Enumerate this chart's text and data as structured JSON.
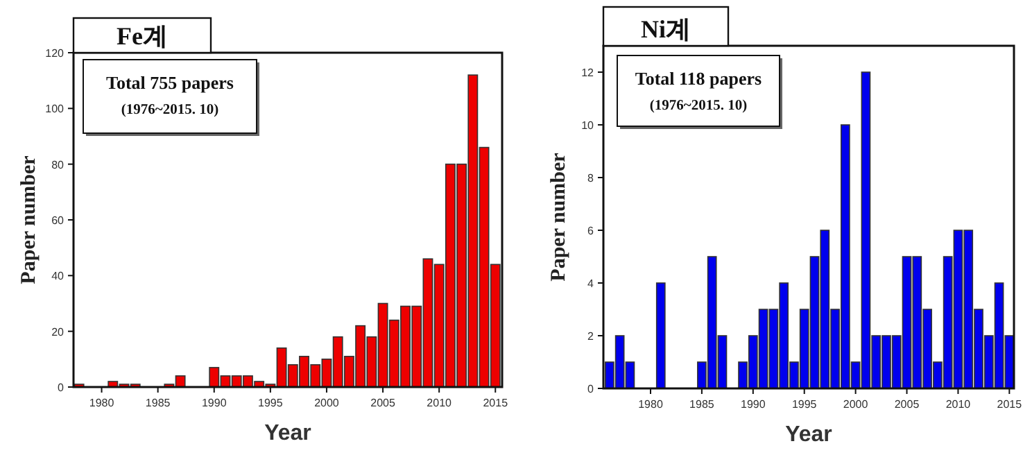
{
  "chart_data": [
    {
      "type": "bar",
      "title": "Fe계",
      "xlabel": "Year",
      "ylabel": "Paper number",
      "annotations": [
        "Total 755 papers",
        "(1976~2015. 10)"
      ],
      "x": [
        1978,
        1981,
        1982,
        1983,
        1986,
        1987,
        1990,
        1991,
        1992,
        1993,
        1994,
        1995,
        1996,
        1997,
        1998,
        1999,
        2000,
        2001,
        2002,
        2003,
        2004,
        2005,
        2006,
        2007,
        2008,
        2009,
        2010,
        2011,
        2012,
        2013,
        2014,
        2015
      ],
      "values": [
        1,
        2,
        1,
        1,
        1,
        4,
        7,
        4,
        4,
        4,
        2,
        1,
        14,
        8,
        11,
        8,
        10,
        18,
        11,
        22,
        18,
        30,
        24,
        29,
        29,
        46,
        44,
        80,
        80,
        112,
        86,
        44
      ],
      "color": "#ee0000",
      "xlim": [
        1977.5,
        2015.6
      ],
      "xticks": [
        1980,
        1985,
        1990,
        1995,
        2000,
        2005,
        2010,
        2015
      ],
      "ylim": [
        0,
        120
      ],
      "yticks": [
        0,
        20,
        40,
        60,
        80,
        100,
        120
      ]
    },
    {
      "type": "bar",
      "title": "Ni계",
      "xlabel": "Year",
      "ylabel": "Paper number",
      "annotations": [
        "Total 118 papers",
        "(1976~2015. 10)"
      ],
      "x": [
        1976,
        1977,
        1978,
        1981,
        1985,
        1986,
        1987,
        1989,
        1990,
        1991,
        1992,
        1993,
        1994,
        1995,
        1996,
        1997,
        1998,
        1999,
        2000,
        2001,
        2002,
        2003,
        2004,
        2005,
        2006,
        2007,
        2008,
        2009,
        2010,
        2011,
        2012,
        2013,
        2014,
        2015
      ],
      "values": [
        1,
        2,
        1,
        4,
        1,
        5,
        2,
        1,
        2,
        3,
        3,
        4,
        1,
        3,
        5,
        6,
        3,
        10,
        1,
        12,
        2,
        2,
        2,
        5,
        5,
        3,
        1,
        5,
        6,
        6,
        3,
        2,
        4,
        2
      ],
      "color": "#0000ee",
      "xlim": [
        1975.4,
        2015.45
      ],
      "xticks": [
        1980,
        1985,
        1990,
        1995,
        2000,
        2005,
        2010,
        2015
      ],
      "ylim": [
        0,
        13
      ],
      "yticks": [
        0,
        2,
        4,
        6,
        8,
        10,
        12
      ]
    }
  ]
}
